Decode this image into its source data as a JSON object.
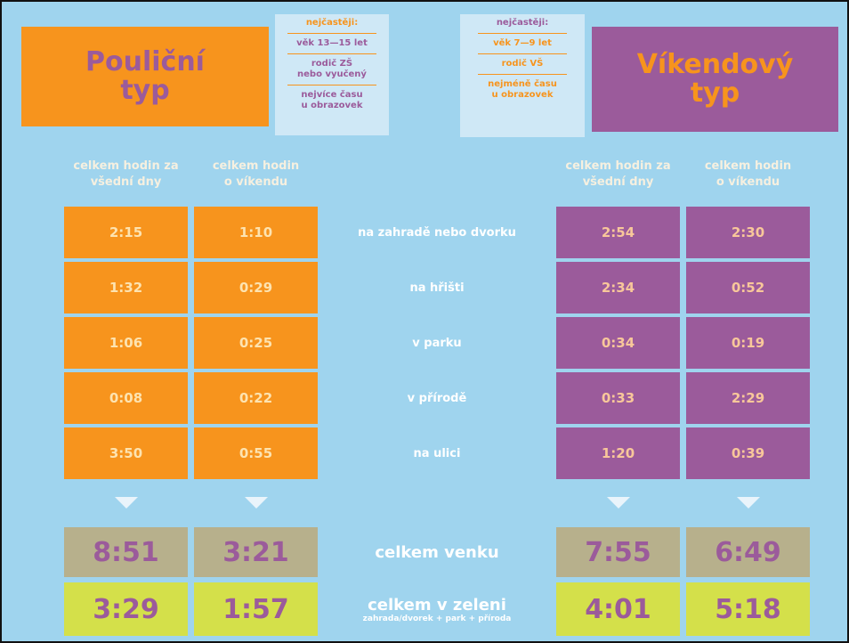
{
  "left": {
    "title": [
      "Pouliční",
      "typ"
    ],
    "info": {
      "heading": "nejčastěji:",
      "items": [
        [
          "věk 13—15 let"
        ],
        [
          "rodič ZŠ",
          "nebo vyučený"
        ],
        [
          "nejvíce času",
          "u obrazovek"
        ]
      ]
    },
    "columns": [
      [
        "celkem hodin za",
        "všední dny"
      ],
      [
        "celkem hodin",
        "o víkendu"
      ]
    ]
  },
  "right": {
    "title": [
      "Víkendový",
      "typ"
    ],
    "info": {
      "heading": "nejčastěji:",
      "items": [
        [
          "věk 7—9 let"
        ],
        [
          "rodič VŠ"
        ],
        [
          "nejméně času",
          "u obrazovek"
        ]
      ]
    },
    "columns": [
      [
        "celkem hodin za",
        "všední dny"
      ],
      [
        "celkem hodin",
        "o víkendu"
      ]
    ]
  },
  "rows": [
    {
      "label": "na zahradě nebo dvorku",
      "left": [
        "2:15",
        "1:10"
      ],
      "right": [
        "2:54",
        "2:30"
      ]
    },
    {
      "label": "na hřišti",
      "left": [
        "1:32",
        "0:29"
      ],
      "right": [
        "2:34",
        "0:52"
      ]
    },
    {
      "label": "v parku",
      "left": [
        "1:06",
        "0:25"
      ],
      "right": [
        "0:34",
        "0:19"
      ]
    },
    {
      "label": "v přírodě",
      "left": [
        "0:08",
        "0:22"
      ],
      "right": [
        "0:33",
        "2:29"
      ]
    },
    {
      "label": "na ulici",
      "left": [
        "3:50",
        "0:55"
      ],
      "right": [
        "1:20",
        "0:39"
      ]
    }
  ],
  "totals": [
    {
      "label": "celkem venku",
      "left": [
        "8:51",
        "3:21"
      ],
      "right": [
        "7:55",
        "6:49"
      ]
    },
    {
      "label": "celkem v zeleni",
      "sublabel": "zahrada/dvorek + park + příroda",
      "left": [
        "3:29",
        "1:57"
      ],
      "right": [
        "4:01",
        "5:18"
      ]
    }
  ]
}
